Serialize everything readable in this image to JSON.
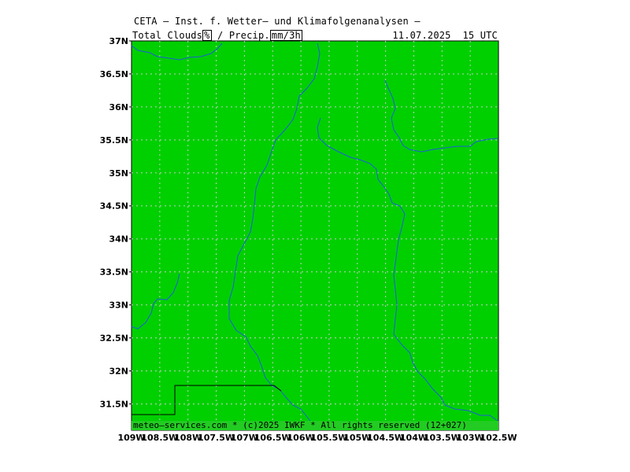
{
  "header": {
    "title": "CETA — Inst. f. Wetter— und Klimafolgenanalysen —",
    "subtitle_prefix": "Total_Clouds",
    "unit_clouds": "%",
    "subtitle_middle": "_/_Precip.",
    "unit_precip": "mm/3h",
    "timestamp": "11.07.2025  15 UTC"
  },
  "footer": {
    "credit": "meteo—services.com * (c)2025 IWKF * All rights reserved (12+027)"
  },
  "map": {
    "field_color": "#00d000",
    "grid_color": "#c8c8c8",
    "river_color": "#1f5fd6",
    "lon_range": [
      -109,
      -102.5
    ],
    "lat_range": [
      31.1,
      37
    ],
    "lat_ticks": [
      "37N",
      "36.5N",
      "36N",
      "35.5N",
      "35N",
      "34.5N",
      "34N",
      "33.5N",
      "33N",
      "32.5N",
      "32N",
      "31.5N"
    ],
    "lat_values": [
      37,
      36.5,
      36,
      35.5,
      35,
      34.5,
      34,
      33.5,
      33,
      32.5,
      32,
      31.5
    ],
    "lon_ticks": [
      "109W",
      "108.5W",
      "108W",
      "107.5W",
      "107W",
      "106.5W",
      "106W",
      "105.5W",
      "105W",
      "104.5W",
      "104W",
      "103.5W",
      "103W",
      "102.5W"
    ],
    "lon_values": [
      -109,
      -108.5,
      -108,
      -107.5,
      -107,
      -106.5,
      -106,
      -105.5,
      -105,
      -104.5,
      -104,
      -103.5,
      -103,
      -102.5
    ]
  }
}
